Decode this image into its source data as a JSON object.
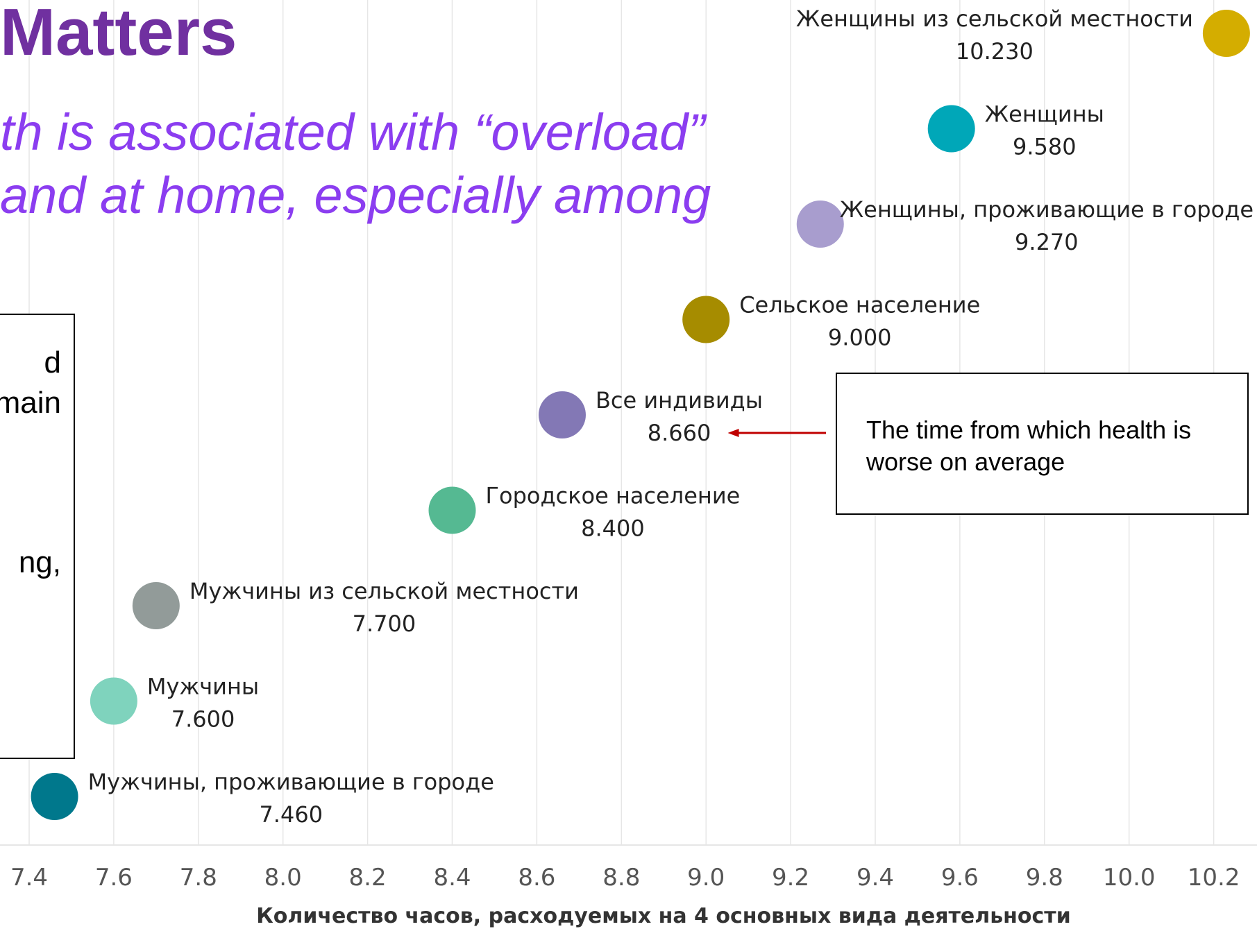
{
  "header": {
    "title": "Matters",
    "subtitle_lines": [
      "th is associated with “overload”",
      "and at home, especially among"
    ]
  },
  "left_box": {
    "fragments": [
      "d",
      "main",
      "ng,"
    ]
  },
  "note": {
    "text": "The time from which health is worse on average"
  },
  "colors": {
    "title": "#7030a0",
    "subtitle": "#8b3df0",
    "grid": "#e6e6e6",
    "tick_label": "#555555",
    "label": "#222222",
    "arrow": "#c00000"
  },
  "chart_data": {
    "type": "scatter",
    "xlabel": "Количество часов, расходуемых на 4 основных вида деятельности",
    "x_ticks": [
      "7.4",
      "7.6",
      "7.8",
      "8.0",
      "8.2",
      "8.4",
      "8.6",
      "8.8",
      "9.0",
      "9.2",
      "9.4",
      "9.6",
      "9.8",
      "10.0",
      "10.2"
    ],
    "xlim": [
      7.4,
      10.2
    ],
    "grid": true,
    "highlight": {
      "category": "Все индивиды",
      "value": 8.66,
      "note": "The time from which health is worse on average"
    },
    "points": [
      {
        "label": "Женщины из сельской местности",
        "x": 10.23,
        "value_label": "10.230",
        "color": "#d4ad00"
      },
      {
        "label": "Женщины",
        "x": 9.58,
        "value_label": "9.580",
        "color": "#00a7b8"
      },
      {
        "label": "Женщины, проживающие в городе",
        "x": 9.27,
        "value_label": "9.270",
        "color": "#a89dce"
      },
      {
        "label": "Сельское население",
        "x": 9.0,
        "value_label": "9.000",
        "color": "#a68c00"
      },
      {
        "label": "Все индивиды",
        "x": 8.66,
        "value_label": "8.660",
        "color": "#8378b5"
      },
      {
        "label": "Городское население",
        "x": 8.4,
        "value_label": "8.400",
        "color": "#55b992"
      },
      {
        "label": "Мужчины из сельской местности",
        "x": 7.7,
        "value_label": "7.700",
        "color": "#929b99"
      },
      {
        "label": "Мужчины",
        "x": 7.6,
        "value_label": "7.600",
        "color": "#7fd3bd"
      },
      {
        "label": "Мужчины, проживающие в городе",
        "x": 7.46,
        "value_label": "7.460",
        "color": "#00788c"
      }
    ]
  }
}
